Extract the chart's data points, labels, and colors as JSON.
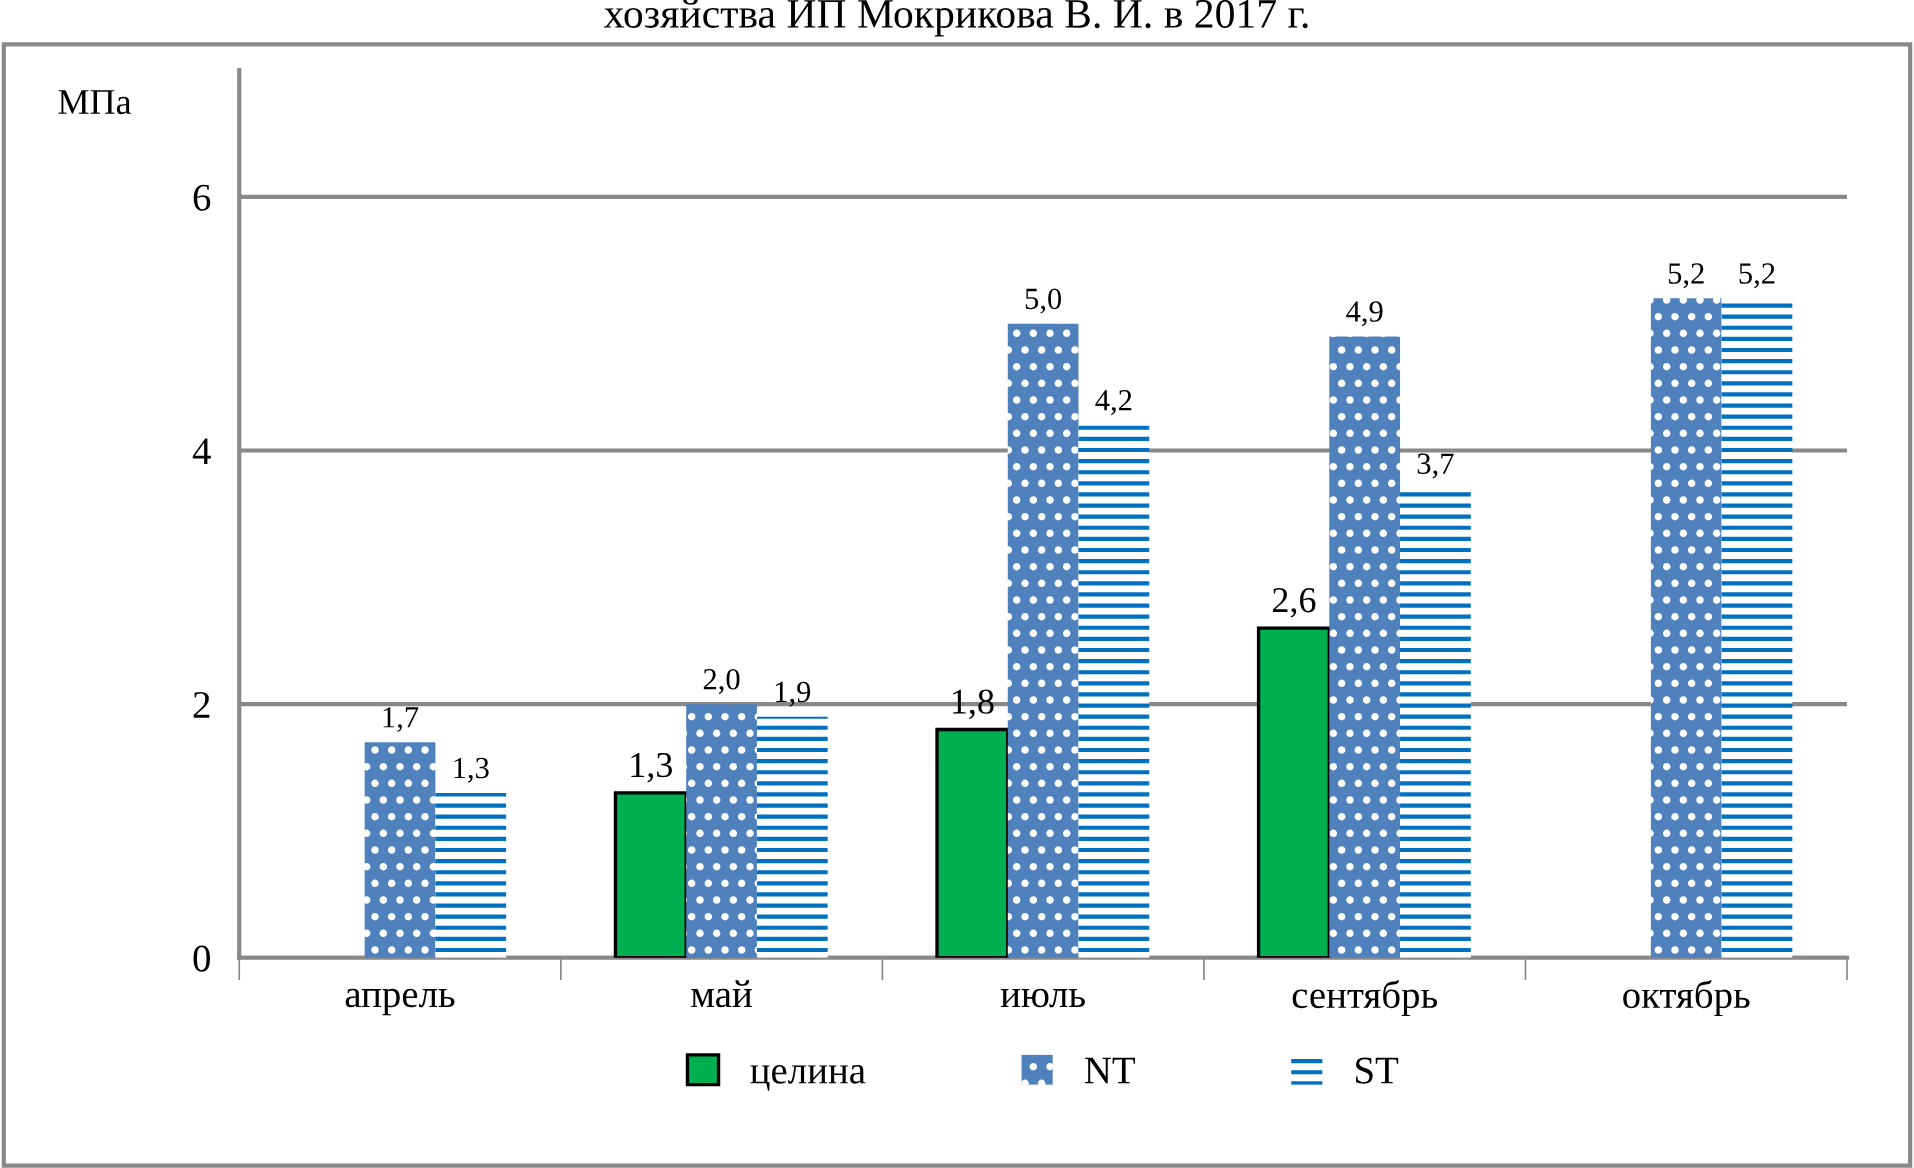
{
  "chart_data": {
    "type": "bar",
    "title": "хозяйства ИП Мокрикова В. И. в 2017 г.",
    "ylabel": "МПа",
    "categories": [
      "апрель",
      "май",
      "июль",
      "сентябрь",
      "октябрь"
    ],
    "series": [
      {
        "name": "целина",
        "color": "#00b050",
        "values": [
          null,
          1.3,
          1.8,
          2.6,
          null
        ],
        "value_labels": [
          null,
          "1,3",
          "1,8",
          "2,6",
          null
        ]
      },
      {
        "name": "NT",
        "color": "#4f81bd",
        "values": [
          1.7,
          2.0,
          5.0,
          4.9,
          5.2
        ],
        "value_labels": [
          "1,7",
          "2,0",
          "5,0",
          "4,9",
          "5,2"
        ]
      },
      {
        "name": "ST",
        "color": "#ffffff",
        "values": [
          1.3,
          1.9,
          4.2,
          3.7,
          5.2
        ],
        "value_labels": [
          "1,3",
          "1,9",
          "4,2",
          "3,7",
          "5,2"
        ]
      }
    ],
    "ylim": [
      0,
      7
    ],
    "yticks": [
      0,
      2,
      4,
      6
    ],
    "grid": "y",
    "legend": "bottom"
  }
}
